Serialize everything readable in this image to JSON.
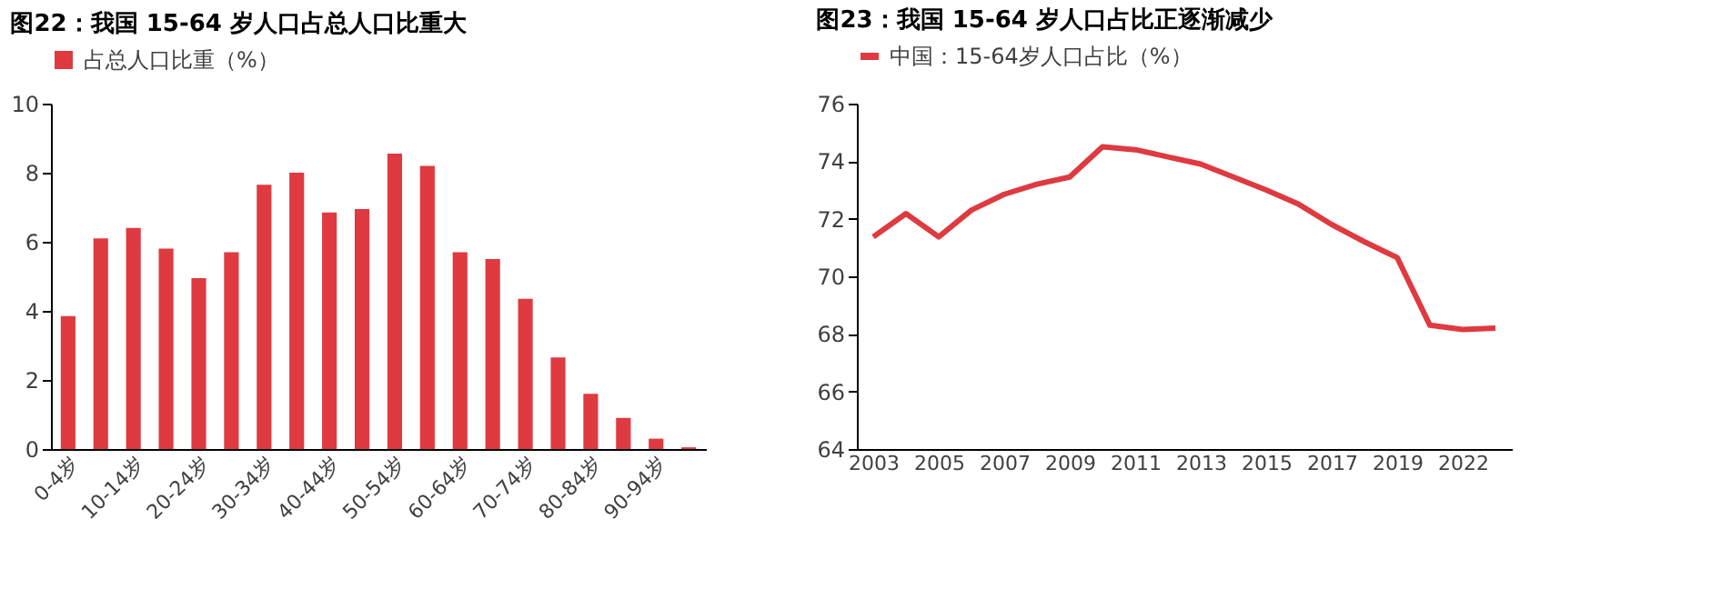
{
  "chart_data": [
    {
      "type": "bar",
      "title": "图22：我国 15-64 岁人口占总人口比重大",
      "categories": [
        "0-4岁",
        null,
        "10-14岁",
        null,
        "20-24岁",
        null,
        "30-34岁",
        null,
        "40-44岁",
        null,
        "50-54岁",
        null,
        "60-64岁",
        null,
        "70-74岁",
        null,
        "80-84岁",
        null,
        "90-94岁",
        null
      ],
      "series": [
        {
          "name": "占总人口比重（%）",
          "color": "#de3a40",
          "values": [
            3.85,
            6.1,
            6.4,
            5.8,
            4.95,
            5.7,
            7.65,
            8.0,
            6.85,
            6.95,
            8.55,
            8.2,
            5.7,
            5.5,
            4.35,
            2.65,
            1.6,
            0.9,
            0.3,
            0.05
          ]
        }
      ],
      "ylim": [
        0,
        10
      ],
      "yticks": [
        0,
        2,
        4,
        6,
        8,
        10
      ],
      "grid": false,
      "legend": "top"
    },
    {
      "type": "line",
      "title": "图23：我国 15-64 岁人口占比正逐渐减少",
      "categories": [
        "2003",
        null,
        "2005",
        null,
        "2007",
        null,
        "2009",
        null,
        "2011",
        null,
        "2013",
        null,
        "2015",
        null,
        "2017",
        null,
        "2019",
        null,
        "2022",
        null
      ],
      "series": [
        {
          "name": "中国：15-64岁人口占比（%）",
          "color": "#de3a40",
          "values": [
            71.37,
            72.18,
            71.37,
            72.3,
            72.85,
            73.2,
            73.45,
            74.5,
            74.4,
            74.15,
            73.9,
            73.45,
            73.0,
            72.5,
            71.8,
            71.2,
            70.65,
            68.3,
            68.15,
            68.2
          ]
        }
      ],
      "ylim": [
        64,
        76
      ],
      "yticks": [
        64,
        66,
        68,
        70,
        72,
        74,
        76
      ],
      "grid": false,
      "legend": "top",
      "marker": "none",
      "line_style": "solid"
    }
  ]
}
